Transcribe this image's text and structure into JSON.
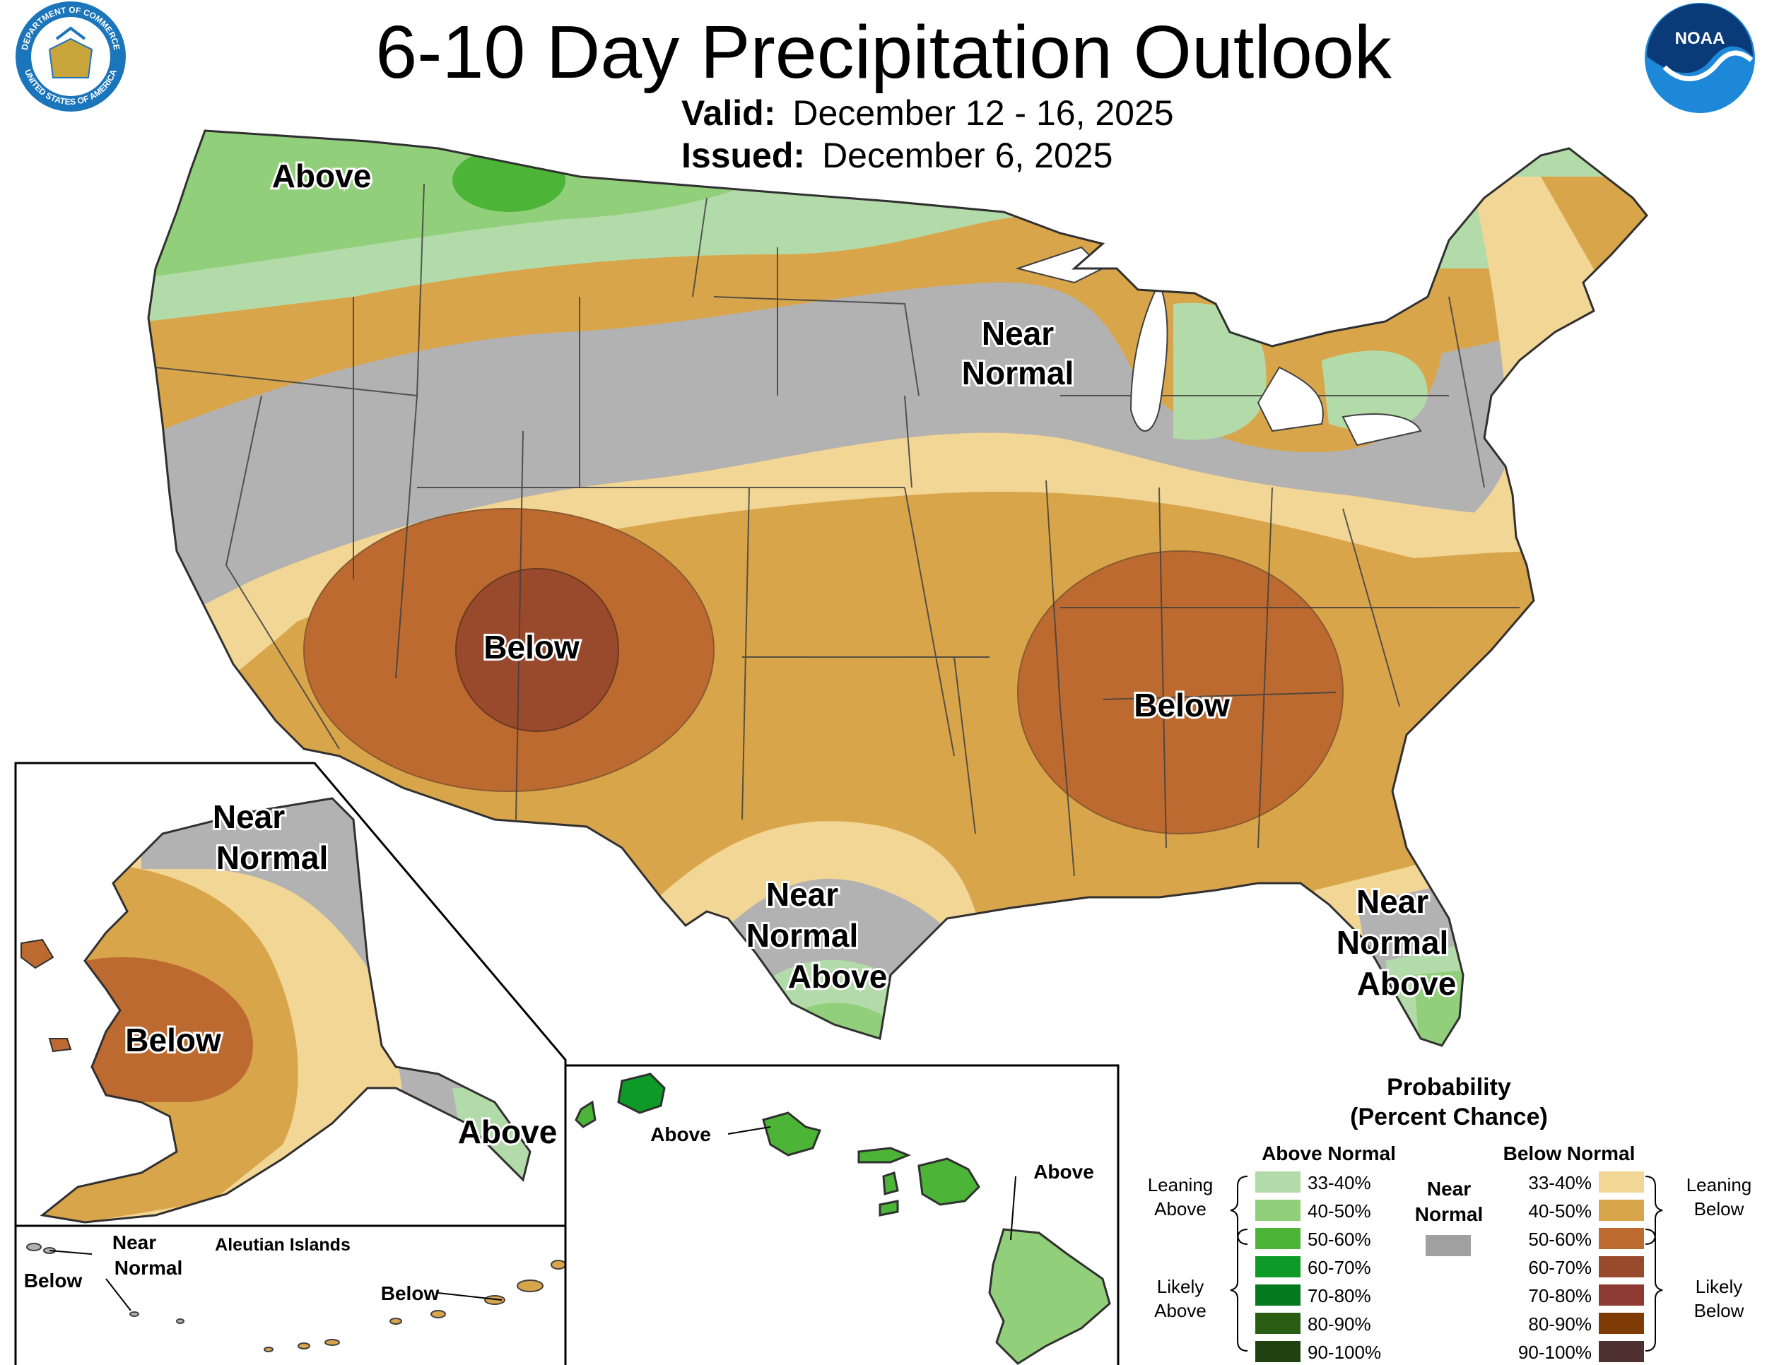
{
  "title": "6-10 Day Precipitation Outlook",
  "valid_label": "Valid:",
  "valid_dates": "December 12 - 16, 2025",
  "issued_label": "Issued:",
  "issued_date": "December 6, 2025",
  "logos": {
    "commerce": {
      "icon": "commerce-seal-icon",
      "text_top": "DEPARTMENT OF COMMERCE",
      "text_bottom": "UNITED STATES OF AMERICA"
    },
    "noaa": {
      "icon": "noaa-logo-icon",
      "text": "NOAA"
    }
  },
  "colors": {
    "near_normal": "#b2b2b2",
    "above": [
      "#b3dba9",
      "#92cf7a",
      "#4cb537",
      "#0e9a27",
      "#04791d",
      "#2a5d14",
      "#1f4210"
    ],
    "below": [
      "#f2d696",
      "#d9a54b",
      "#bd6a31",
      "#9a4a2c",
      "#8c3a32",
      "#7e3b06",
      "#4f3030"
    ],
    "near_normal_legend": "#a0a0a0"
  },
  "conus_labels": {
    "above_nw": "Above",
    "near_normal_north_1": "Near",
    "near_normal_north_2": "Normal",
    "below_sw": "Below",
    "below_se": "Below",
    "texas_near_1": "Near",
    "texas_near_2": "Normal",
    "texas_above": "Above",
    "florida_near_1": "Near",
    "florida_near_2": "Normal",
    "florida_above": "Above"
  },
  "alaska_labels": {
    "near_1": "Near",
    "near_2": "Normal",
    "below": "Below",
    "above": "Above"
  },
  "aleutian": {
    "title": "Aleutian Islands",
    "near_1": "Near",
    "near_2": "Normal",
    "below_west": "Below",
    "below_east": "Below"
  },
  "hawaii_labels": {
    "above_oahu": "Above",
    "above_big": "Above"
  },
  "legend": {
    "title_1": "Probability",
    "title_2": "(Percent Chance)",
    "above_header": "Above Normal",
    "below_header": "Below Normal",
    "near_1": "Near",
    "near_2": "Normal",
    "leaning_above_1": "Leaning",
    "leaning_above_2": "Above",
    "likely_above_1": "Likely",
    "likely_above_2": "Above",
    "leaning_below_1": "Leaning",
    "leaning_below_2": "Below",
    "likely_below_1": "Likely",
    "likely_below_2": "Below",
    "ranges": [
      "33-40%",
      "40-50%",
      "50-60%",
      "60-70%",
      "70-80%",
      "80-90%",
      "90-100%"
    ]
  }
}
